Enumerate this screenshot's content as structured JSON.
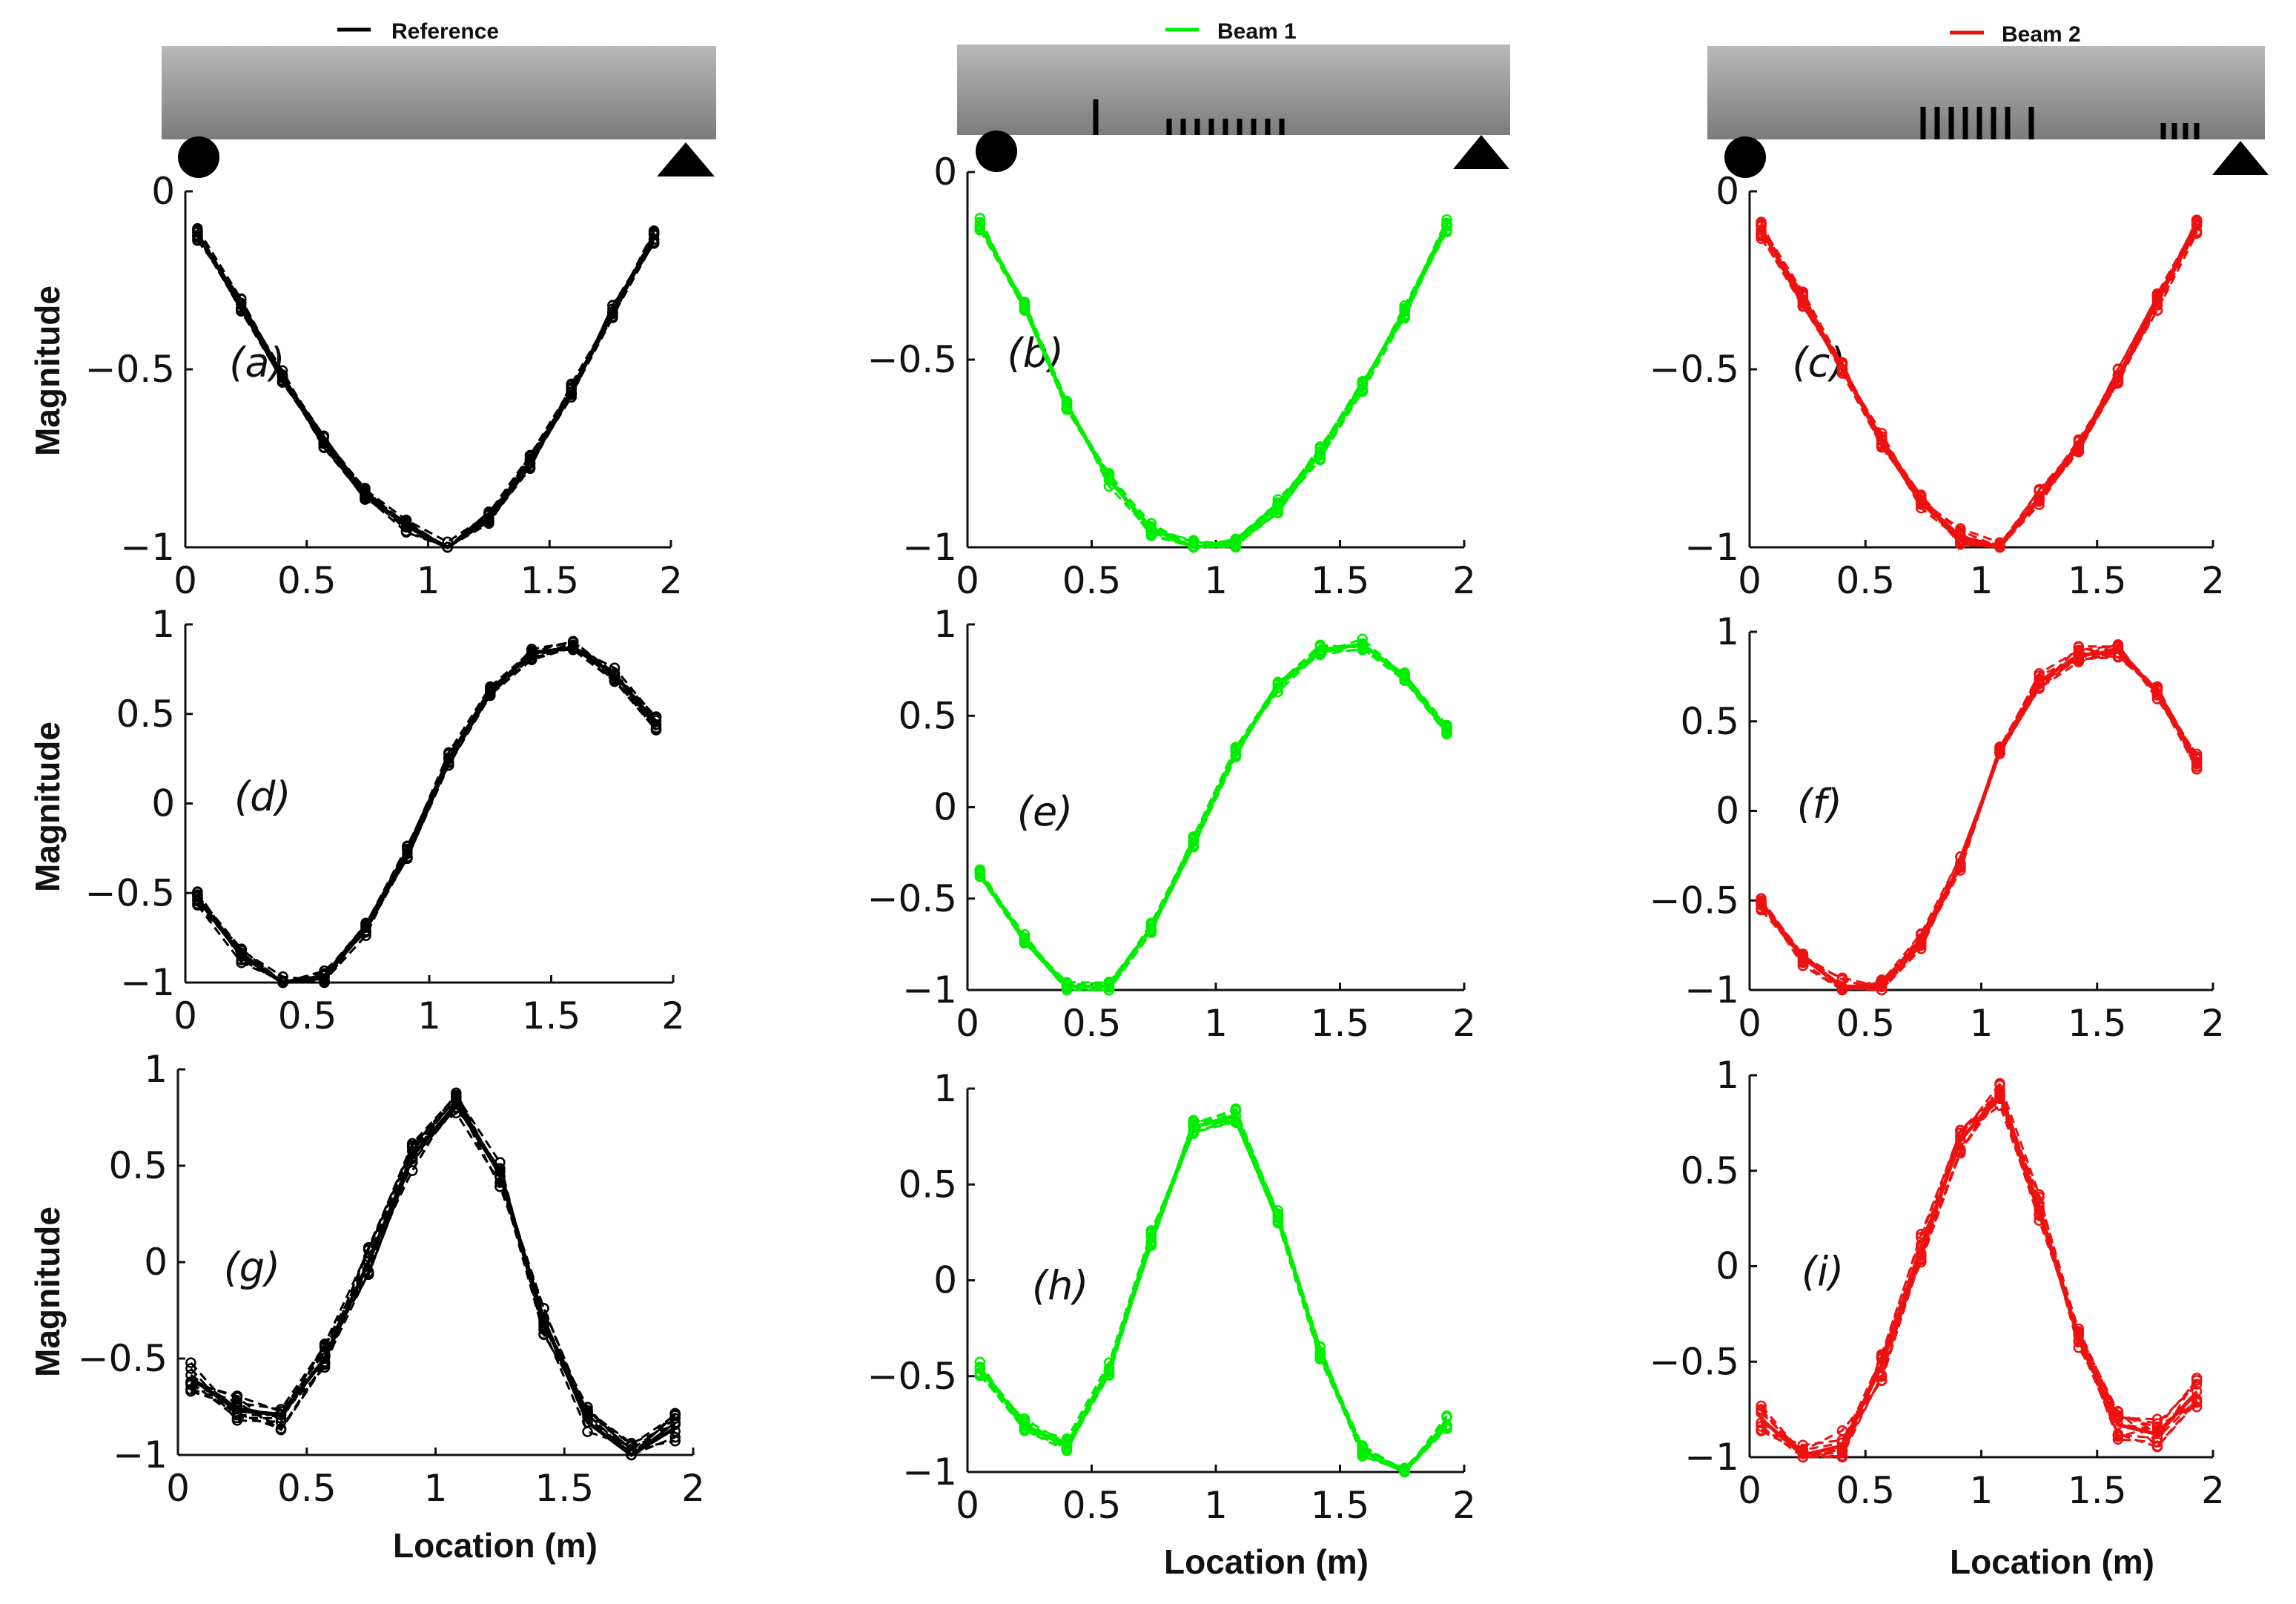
{
  "legend": [
    {
      "label": "Reference",
      "color": "#000000"
    },
    {
      "label": "Beam 1",
      "color": "#00ee00"
    },
    {
      "label": "Beam 2",
      "color": "#ee1111"
    }
  ],
  "ylabel": "Magnitude",
  "xlabel": "Location (m)",
  "chart_data": [
    {
      "type": "line",
      "panel": "(a)",
      "beam": "Reference",
      "color": "#000000",
      "xlim": [
        0,
        2
      ],
      "ylim": [
        -1,
        0
      ],
      "xticks": [
        "0",
        "0.5",
        "1",
        "1.5",
        "2"
      ],
      "yticks": [
        "0",
        "−0.5",
        "−1"
      ],
      "ytick_values": [
        0,
        -0.5,
        -1
      ],
      "x": [
        0.05,
        0.23,
        0.4,
        0.57,
        0.74,
        0.91,
        1.08,
        1.25,
        1.42,
        1.59,
        1.76,
        1.93
      ],
      "y": [
        -0.12,
        -0.32,
        -0.52,
        -0.7,
        -0.85,
        -0.94,
        -1.0,
        -0.92,
        -0.76,
        -0.56,
        -0.34,
        -0.13
      ],
      "spread": 0.02
    },
    {
      "type": "line",
      "panel": "(b)",
      "beam": "Beam 1",
      "color": "#00ee00",
      "xlim": [
        0,
        2
      ],
      "ylim": [
        -1,
        0
      ],
      "xticks": [
        "0",
        "0.5",
        "1",
        "1.5",
        "2"
      ],
      "yticks": [
        "0",
        "−0.5",
        "−1"
      ],
      "ytick_values": [
        0,
        -0.5,
        -1
      ],
      "x": [
        0.05,
        0.23,
        0.4,
        0.57,
        0.74,
        0.91,
        1.08,
        1.25,
        1.42,
        1.59,
        1.76,
        1.93
      ],
      "y": [
        -0.14,
        -0.36,
        -0.62,
        -0.82,
        -0.95,
        -1.0,
        -0.99,
        -0.89,
        -0.75,
        -0.57,
        -0.37,
        -0.14
      ],
      "spread": 0.02
    },
    {
      "type": "line",
      "panel": "(c)",
      "beam": "Beam 2",
      "color": "#ee1111",
      "xlim": [
        0,
        2
      ],
      "ylim": [
        -1,
        0
      ],
      "xticks": [
        "0",
        "0.5",
        "1",
        "1.5",
        "2"
      ],
      "yticks": [
        "0",
        "−0.5",
        "−1"
      ],
      "ytick_values": [
        0,
        -0.5,
        -1
      ],
      "x": [
        0.05,
        0.23,
        0.4,
        0.57,
        0.74,
        0.91,
        1.08,
        1.25,
        1.42,
        1.59,
        1.76,
        1.93
      ],
      "y": [
        -0.11,
        -0.3,
        -0.5,
        -0.7,
        -0.87,
        -0.97,
        -1.0,
        -0.86,
        -0.71,
        -0.52,
        -0.31,
        -0.1
      ],
      "spread": 0.025
    },
    {
      "type": "line",
      "panel": "(d)",
      "beam": "Reference",
      "color": "#000000",
      "xlim": [
        0,
        2
      ],
      "ylim": [
        -1,
        1
      ],
      "xticks": [
        "0",
        "0.5",
        "1",
        "1.5",
        "2"
      ],
      "yticks": [
        "1",
        "0.5",
        "0",
        "−0.5",
        "−1"
      ],
      "ytick_values": [
        1,
        0.5,
        0,
        -0.5,
        -1
      ],
      "x": [
        0.05,
        0.23,
        0.4,
        0.57,
        0.74,
        0.91,
        1.08,
        1.25,
        1.42,
        1.59,
        1.76,
        1.93
      ],
      "y": [
        -0.53,
        -0.85,
        -1.0,
        -0.97,
        -0.7,
        -0.27,
        0.25,
        0.63,
        0.84,
        0.87,
        0.72,
        0.45
      ],
      "spread": 0.04
    },
    {
      "type": "line",
      "panel": "(e)",
      "beam": "Beam 1",
      "color": "#00ee00",
      "xlim": [
        0,
        2
      ],
      "ylim": [
        -1,
        1
      ],
      "xticks": [
        "0",
        "0.5",
        "1",
        "1.5",
        "2"
      ],
      "yticks": [
        "1",
        "0.5",
        "0",
        "−0.5",
        "−1"
      ],
      "ytick_values": [
        1,
        0.5,
        0,
        -0.5,
        -1
      ],
      "x": [
        0.05,
        0.23,
        0.4,
        0.57,
        0.74,
        0.91,
        1.08,
        1.25,
        1.42,
        1.59,
        1.76,
        1.93
      ],
      "y": [
        -0.37,
        -0.72,
        -0.98,
        -0.98,
        -0.66,
        -0.19,
        0.3,
        0.66,
        0.86,
        0.89,
        0.72,
        0.42
      ],
      "spread": 0.03
    },
    {
      "type": "line",
      "panel": "(f)",
      "beam": "Beam 2",
      "color": "#ee1111",
      "xlim": [
        0,
        2
      ],
      "ylim": [
        -1,
        1
      ],
      "xticks": [
        "0",
        "0.5",
        "1",
        "1.5",
        "2"
      ],
      "yticks": [
        "1",
        "0.5",
        "0",
        "−0.5",
        "−1"
      ],
      "ytick_values": [
        1,
        0.5,
        0,
        -0.5,
        -1
      ],
      "x": [
        0.05,
        0.23,
        0.4,
        0.57,
        0.74,
        0.91,
        1.08,
        1.25,
        1.42,
        1.59,
        1.76,
        1.93
      ],
      "y": [
        -0.51,
        -0.82,
        -0.98,
        -0.98,
        -0.72,
        -0.3,
        0.34,
        0.72,
        0.87,
        0.89,
        0.67,
        0.28
      ],
      "spread": 0.05
    },
    {
      "type": "line",
      "panel": "(g)",
      "beam": "Reference",
      "color": "#000000",
      "xlim": [
        0,
        2
      ],
      "ylim": [
        -1,
        1
      ],
      "xticks": [
        "0",
        "0.5",
        "1",
        "1.5",
        "2"
      ],
      "yticks": [
        "1",
        "0.5",
        "0",
        "−0.5",
        "−1"
      ],
      "ytick_values": [
        1,
        0.5,
        0,
        -0.5,
        -1
      ],
      "x": [
        0.05,
        0.23,
        0.4,
        0.57,
        0.74,
        0.91,
        1.08,
        1.25,
        1.42,
        1.59,
        1.76,
        1.93
      ],
      "y": [
        -0.6,
        -0.77,
        -0.79,
        -0.5,
        0.0,
        0.55,
        0.82,
        0.46,
        -0.3,
        -0.83,
        -1.0,
        -0.86
      ],
      "spread": 0.08
    },
    {
      "type": "line",
      "panel": "(h)",
      "beam": "Beam 1",
      "color": "#00ee00",
      "xlim": [
        0,
        2
      ],
      "ylim": [
        -1,
        1
      ],
      "xticks": [
        "0",
        "0.5",
        "1",
        "1.5",
        "2"
      ],
      "yticks": [
        "1",
        "0.5",
        "0",
        "−0.5",
        "−1"
      ],
      "ytick_values": [
        1,
        0.5,
        0,
        -0.5,
        -1
      ],
      "x": [
        0.05,
        0.23,
        0.4,
        0.57,
        0.74,
        0.91,
        1.08,
        1.25,
        1.42,
        1.59,
        1.76,
        1.93
      ],
      "y": [
        -0.46,
        -0.76,
        -0.86,
        -0.46,
        0.22,
        0.8,
        0.86,
        0.33,
        -0.38,
        -0.89,
        -1.0,
        -0.74
      ],
      "spread": 0.04
    },
    {
      "type": "line",
      "panel": "(i)",
      "beam": "Beam 2",
      "color": "#ee1111",
      "xlim": [
        0,
        2
      ],
      "ylim": [
        -1,
        1
      ],
      "xticks": [
        "0",
        "0.5",
        "1",
        "1.5",
        "2"
      ],
      "yticks": [
        "1",
        "0.5",
        "0",
        "−0.5",
        "−1"
      ],
      "ytick_values": [
        1,
        0.5,
        0,
        -0.5,
        -1
      ],
      "x": [
        0.05,
        0.23,
        0.4,
        0.57,
        0.74,
        0.91,
        1.08,
        1.25,
        1.42,
        1.59,
        1.76,
        1.93
      ],
      "y": [
        -0.8,
        -0.99,
        -0.94,
        -0.52,
        0.1,
        0.66,
        0.9,
        0.3,
        -0.38,
        -0.83,
        -0.88,
        -0.66
      ],
      "spread": 0.08
    }
  ]
}
